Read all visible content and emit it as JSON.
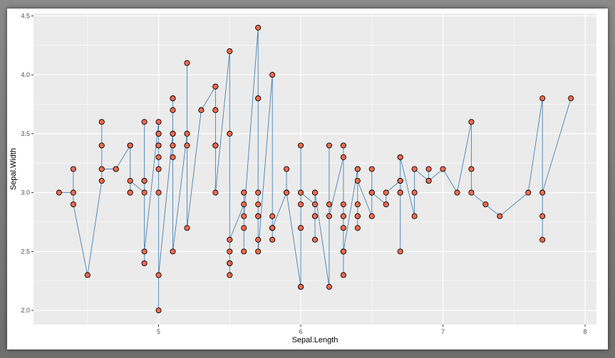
{
  "chart_data": {
    "type": "scatter",
    "title": "",
    "xlabel": "Sepal.Length",
    "ylabel": "Sepal.Width",
    "xlim": [
      4.3,
      7.9
    ],
    "ylim": [
      2.0,
      4.4
    ],
    "x_ticks": [
      "5",
      "6",
      "7",
      "8"
    ],
    "y_ticks": [
      "2.0",
      "2.5",
      "3.0",
      "3.5",
      "4.0",
      "4.5"
    ],
    "grid": true,
    "connect_points": true,
    "line_color": "#4682B4",
    "point_fill": "#F26A4F",
    "point_stroke": "#000000",
    "panel_background": "#EBEBEB",
    "grid_color": "#FFFFFF",
    "points": [
      {
        "x": 4.3,
        "y": 3.0
      },
      {
        "x": 4.4,
        "y": 3.0
      },
      {
        "x": 4.4,
        "y": 3.2
      },
      {
        "x": 4.4,
        "y": 2.9
      },
      {
        "x": 4.5,
        "y": 2.3
      },
      {
        "x": 4.6,
        "y": 3.1
      },
      {
        "x": 4.6,
        "y": 3.6
      },
      {
        "x": 4.6,
        "y": 3.4
      },
      {
        "x": 4.6,
        "y": 3.2
      },
      {
        "x": 4.7,
        "y": 3.2
      },
      {
        "x": 4.7,
        "y": 3.2
      },
      {
        "x": 4.8,
        "y": 3.4
      },
      {
        "x": 4.8,
        "y": 3.0
      },
      {
        "x": 4.8,
        "y": 3.4
      },
      {
        "x": 4.8,
        "y": 3.0
      },
      {
        "x": 4.8,
        "y": 3.1
      },
      {
        "x": 4.9,
        "y": 3.0
      },
      {
        "x": 4.9,
        "y": 3.1
      },
      {
        "x": 4.9,
        "y": 3.1
      },
      {
        "x": 4.9,
        "y": 3.6
      },
      {
        "x": 4.9,
        "y": 2.4
      },
      {
        "x": 4.9,
        "y": 2.5
      },
      {
        "x": 5.0,
        "y": 3.6
      },
      {
        "x": 5.0,
        "y": 3.4
      },
      {
        "x": 5.0,
        "y": 3.0
      },
      {
        "x": 5.0,
        "y": 3.4
      },
      {
        "x": 5.0,
        "y": 3.2
      },
      {
        "x": 5.0,
        "y": 3.5
      },
      {
        "x": 5.0,
        "y": 3.5
      },
      {
        "x": 5.0,
        "y": 3.3
      },
      {
        "x": 5.0,
        "y": 2.0
      },
      {
        "x": 5.0,
        "y": 2.3
      },
      {
        "x": 5.1,
        "y": 3.5
      },
      {
        "x": 5.1,
        "y": 3.5
      },
      {
        "x": 5.1,
        "y": 3.8
      },
      {
        "x": 5.1,
        "y": 3.7
      },
      {
        "x": 5.1,
        "y": 3.3
      },
      {
        "x": 5.1,
        "y": 3.4
      },
      {
        "x": 5.1,
        "y": 3.8
      },
      {
        "x": 5.1,
        "y": 3.8
      },
      {
        "x": 5.1,
        "y": 2.5
      },
      {
        "x": 5.2,
        "y": 3.5
      },
      {
        "x": 5.2,
        "y": 3.4
      },
      {
        "x": 5.2,
        "y": 4.1
      },
      {
        "x": 5.2,
        "y": 2.7
      },
      {
        "x": 5.3,
        "y": 3.7
      },
      {
        "x": 5.4,
        "y": 3.9
      },
      {
        "x": 5.4,
        "y": 3.7
      },
      {
        "x": 5.4,
        "y": 3.9
      },
      {
        "x": 5.4,
        "y": 3.4
      },
      {
        "x": 5.4,
        "y": 3.4
      },
      {
        "x": 5.4,
        "y": 3.0
      },
      {
        "x": 5.5,
        "y": 4.2
      },
      {
        "x": 5.5,
        "y": 3.5
      },
      {
        "x": 5.5,
        "y": 2.3
      },
      {
        "x": 5.5,
        "y": 2.4
      },
      {
        "x": 5.5,
        "y": 2.4
      },
      {
        "x": 5.5,
        "y": 2.5
      },
      {
        "x": 5.5,
        "y": 2.6
      },
      {
        "x": 5.6,
        "y": 2.9
      },
      {
        "x": 5.6,
        "y": 3.0
      },
      {
        "x": 5.6,
        "y": 2.5
      },
      {
        "x": 5.6,
        "y": 2.7
      },
      {
        "x": 5.6,
        "y": 3.0
      },
      {
        "x": 5.6,
        "y": 2.8
      },
      {
        "x": 5.7,
        "y": 4.4
      },
      {
        "x": 5.7,
        "y": 3.8
      },
      {
        "x": 5.7,
        "y": 3.8
      },
      {
        "x": 5.7,
        "y": 2.8
      },
      {
        "x": 5.7,
        "y": 2.6
      },
      {
        "x": 5.7,
        "y": 3.0
      },
      {
        "x": 5.7,
        "y": 2.9
      },
      {
        "x": 5.7,
        "y": 2.8
      },
      {
        "x": 5.7,
        "y": 2.5
      },
      {
        "x": 5.8,
        "y": 4.0
      },
      {
        "x": 5.8,
        "y": 2.7
      },
      {
        "x": 5.8,
        "y": 2.7
      },
      {
        "x": 5.8,
        "y": 2.6
      },
      {
        "x": 5.8,
        "y": 2.7
      },
      {
        "x": 5.8,
        "y": 2.8
      },
      {
        "x": 5.8,
        "y": 2.7
      },
      {
        "x": 5.9,
        "y": 3.0
      },
      {
        "x": 5.9,
        "y": 3.2
      },
      {
        "x": 5.9,
        "y": 3.0
      },
      {
        "x": 6.0,
        "y": 2.2
      },
      {
        "x": 6.0,
        "y": 2.9
      },
      {
        "x": 6.0,
        "y": 2.7
      },
      {
        "x": 6.0,
        "y": 3.4
      },
      {
        "x": 6.0,
        "y": 2.2
      },
      {
        "x": 6.0,
        "y": 3.0
      },
      {
        "x": 6.1,
        "y": 2.9
      },
      {
        "x": 6.1,
        "y": 2.8
      },
      {
        "x": 6.1,
        "y": 2.8
      },
      {
        "x": 6.1,
        "y": 3.0
      },
      {
        "x": 6.1,
        "y": 2.6
      },
      {
        "x": 6.1,
        "y": 3.0
      },
      {
        "x": 6.2,
        "y": 2.2
      },
      {
        "x": 6.2,
        "y": 2.9
      },
      {
        "x": 6.2,
        "y": 3.4
      },
      {
        "x": 6.2,
        "y": 2.8
      },
      {
        "x": 6.3,
        "y": 3.3
      },
      {
        "x": 6.3,
        "y": 2.5
      },
      {
        "x": 6.3,
        "y": 2.3
      },
      {
        "x": 6.3,
        "y": 2.9
      },
      {
        "x": 6.3,
        "y": 2.5
      },
      {
        "x": 6.3,
        "y": 2.7
      },
      {
        "x": 6.3,
        "y": 2.8
      },
      {
        "x": 6.3,
        "y": 3.4
      },
      {
        "x": 6.3,
        "y": 2.5
      },
      {
        "x": 6.4,
        "y": 3.2
      },
      {
        "x": 6.4,
        "y": 2.9
      },
      {
        "x": 6.4,
        "y": 2.7
      },
      {
        "x": 6.4,
        "y": 3.2
      },
      {
        "x": 6.4,
        "y": 2.8
      },
      {
        "x": 6.4,
        "y": 2.8
      },
      {
        "x": 6.4,
        "y": 3.1
      },
      {
        "x": 6.5,
        "y": 2.8
      },
      {
        "x": 6.5,
        "y": 3.0
      },
      {
        "x": 6.5,
        "y": 3.2
      },
      {
        "x": 6.5,
        "y": 3.0
      },
      {
        "x": 6.5,
        "y": 3.0
      },
      {
        "x": 6.6,
        "y": 2.9
      },
      {
        "x": 6.6,
        "y": 3.0
      },
      {
        "x": 6.7,
        "y": 3.1
      },
      {
        "x": 6.7,
        "y": 3.0
      },
      {
        "x": 6.7,
        "y": 3.1
      },
      {
        "x": 6.7,
        "y": 2.5
      },
      {
        "x": 6.7,
        "y": 3.3
      },
      {
        "x": 6.7,
        "y": 3.0
      },
      {
        "x": 6.7,
        "y": 3.1
      },
      {
        "x": 6.7,
        "y": 3.3
      },
      {
        "x": 6.8,
        "y": 2.8
      },
      {
        "x": 6.8,
        "y": 3.0
      },
      {
        "x": 6.8,
        "y": 3.2
      },
      {
        "x": 6.9,
        "y": 3.1
      },
      {
        "x": 6.9,
        "y": 3.2
      },
      {
        "x": 6.9,
        "y": 3.1
      },
      {
        "x": 6.9,
        "y": 3.1
      },
      {
        "x": 7.0,
        "y": 3.2
      },
      {
        "x": 7.1,
        "y": 3.0
      },
      {
        "x": 7.2,
        "y": 3.6
      },
      {
        "x": 7.2,
        "y": 3.2
      },
      {
        "x": 7.2,
        "y": 3.0
      },
      {
        "x": 7.3,
        "y": 2.9
      },
      {
        "x": 7.4,
        "y": 2.8
      },
      {
        "x": 7.6,
        "y": 3.0
      },
      {
        "x": 7.7,
        "y": 3.8
      },
      {
        "x": 7.7,
        "y": 2.6
      },
      {
        "x": 7.7,
        "y": 2.8
      },
      {
        "x": 7.7,
        "y": 3.0
      },
      {
        "x": 7.9,
        "y": 3.8
      }
    ]
  }
}
